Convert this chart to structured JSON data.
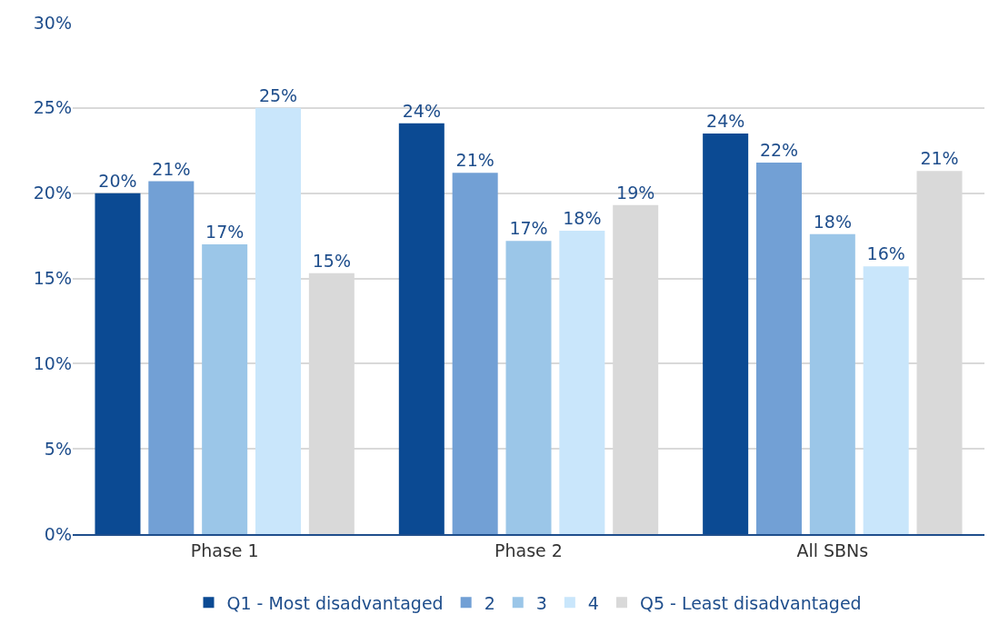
{
  "chart_data": {
    "type": "bar",
    "categories": [
      "Phase 1",
      "Phase 2",
      "All SBNs"
    ],
    "series": [
      {
        "name": "Q1 - Most disadvantaged",
        "color": "#0b4a93",
        "values": [
          20.0,
          24.1,
          23.5
        ],
        "value_labels": [
          "20%",
          "24%",
          "24%"
        ]
      },
      {
        "name": "2",
        "color": "#72a0d5",
        "values": [
          20.7,
          21.2,
          21.8
        ],
        "value_labels": [
          "21%",
          "21%",
          "22%"
        ]
      },
      {
        "name": "3",
        "color": "#9bc6e8",
        "values": [
          17.0,
          17.2,
          17.6
        ],
        "value_labels": [
          "17%",
          "17%",
          "18%"
        ]
      },
      {
        "name": "4",
        "color": "#c9e6fb",
        "values": [
          25.0,
          17.8,
          15.7
        ],
        "value_labels": [
          "25%",
          "18%",
          "16%"
        ]
      },
      {
        "name": "Q5 - Least disadvantaged",
        "color": "#d9d9d9",
        "values": [
          15.3,
          19.3,
          21.3
        ],
        "value_labels": [
          "15%",
          "19%",
          "21%"
        ]
      }
    ],
    "ylim": [
      0,
      30
    ],
    "yticks": [
      {
        "value": 0,
        "label": "0%"
      },
      {
        "value": 5,
        "label": "5%"
      },
      {
        "value": 10,
        "label": "10%"
      },
      {
        "value": 15,
        "label": "15%"
      },
      {
        "value": 20,
        "label": "20%"
      },
      {
        "value": 25,
        "label": "25%"
      },
      {
        "value": 30,
        "label": "30%"
      }
    ],
    "grid": "y",
    "legend": "bottom"
  }
}
